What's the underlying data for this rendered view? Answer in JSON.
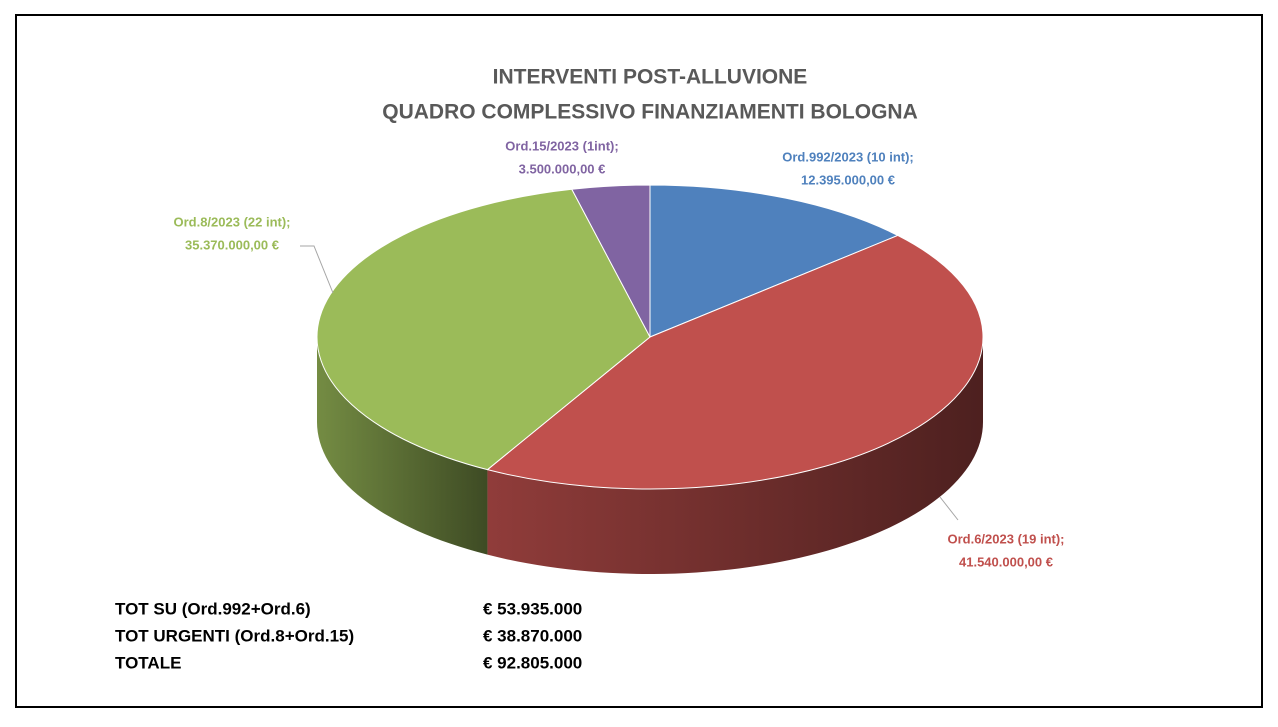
{
  "chart_data": {
    "type": "pie",
    "title": [
      "INTERVENTI POST-ALLUVIONE",
      "QUADRO COMPLESSIVO FINANZIAMENTI BOLOGNA"
    ],
    "categories": [
      "Ord.992/2023 (10 int);",
      "Ord.6/2023 (19 int);",
      "Ord.8/2023 (22 int);",
      "Ord.15/2023 (1int);"
    ],
    "values": [
      12395000,
      41540000,
      35370000,
      3500000
    ],
    "value_labels": [
      "12.395.000,00 €",
      "41.540.000,00 €",
      "35.370.000,00 €",
      "3.500.000,00 €"
    ],
    "colors": [
      "#4f81bd",
      "#c0504d",
      "#9bbb59",
      "#8064a2"
    ]
  },
  "summary": {
    "rows": [
      [
        "TOT SU (Ord.992+Ord.6)",
        "€ 53.935.000"
      ],
      [
        "TOT URGENTI (Ord.8+Ord.15)",
        "€ 38.870.000"
      ],
      [
        "TOTALE",
        "€ 92.805.000"
      ]
    ]
  }
}
